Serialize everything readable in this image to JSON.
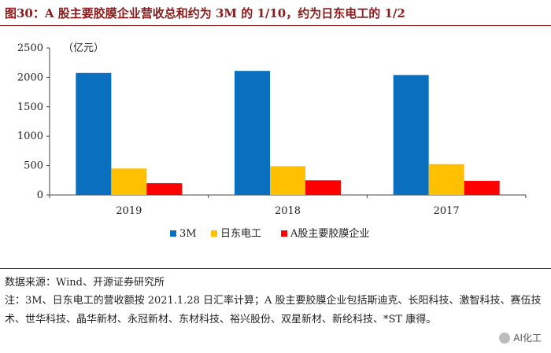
{
  "header": {
    "title": "图30：A 股主要胶膜企业营收总和约为 3M 的 1/10，约为日东电工的 1/2"
  },
  "chart_data": {
    "type": "bar",
    "title": "",
    "ylabel": "（亿元）",
    "xlabel": "",
    "ylim": [
      0,
      2500
    ],
    "yticks": [
      0,
      500,
      1000,
      1500,
      2000,
      2500
    ],
    "categories": [
      "2019",
      "2018",
      "2017"
    ],
    "series": [
      {
        "name": "3M",
        "color": "#0B6FBF",
        "values": [
          2075,
          2110,
          2040
        ]
      },
      {
        "name": "日东电工",
        "color": "#FFC000",
        "values": [
          450,
          490,
          525
        ]
      },
      {
        "name": "A股主要胶膜企业",
        "color": "#FF0000",
        "values": [
          200,
          250,
          240
        ]
      }
    ],
    "legend_position": "bottom-center",
    "grid": false
  },
  "footer": {
    "source": "数据来源：Wind、开源证券研究所",
    "note": "注：3M、日东电工的营收额按 2021.1.28 日汇率计算；A 股主要胶膜企业包括斯迪克、长阳科技、激智科技、赛伍技术、世华科技、晶华新材、永冠新材、东材科技、裕兴股份、双星新材、新纶科技、*ST 康得。"
  },
  "watermark": {
    "text": "AI化工"
  }
}
